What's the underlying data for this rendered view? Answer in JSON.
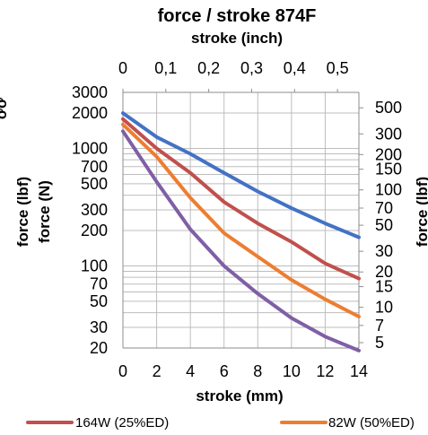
{
  "chart_data": {
    "type": "line",
    "title": "force / stroke 874F",
    "top_axis_label": "stroke (inch)",
    "xlabel": "stroke (mm)",
    "ylabel_left_outer": "force (lbf)",
    "ylabel_left_inner": "force (N)",
    "ylabel_right": "force (lbf)",
    "left_label_partial": "ơơ",
    "x_ticks": [
      "0",
      "2",
      "4",
      "6",
      "8",
      "10",
      "12",
      "14"
    ],
    "x_tick_values": [
      0,
      2,
      4,
      6,
      8,
      10,
      12,
      14
    ],
    "top_ticks": [
      "0",
      "0,1",
      "0,2",
      "0,3",
      "0,4",
      "0,5"
    ],
    "top_tick_values": [
      0,
      0.1,
      0.2,
      0.3,
      0.4,
      0.5
    ],
    "left_ticks": [
      "3000",
      "2000",
      "1000",
      "700",
      "500",
      "300",
      "200",
      "100",
      "70",
      "50",
      "30",
      "20"
    ],
    "left_tick_values": [
      3000,
      2000,
      1000,
      700,
      500,
      300,
      200,
      100,
      70,
      50,
      30,
      20
    ],
    "right_ticks": [
      "500",
      "300",
      "200",
      "150",
      "100",
      "70",
      "50",
      "30",
      "20",
      "15",
      "10",
      "7",
      "5"
    ],
    "right_tick_values": [
      500,
      300,
      200,
      150,
      100,
      70,
      50,
      30,
      20,
      15,
      10,
      7,
      5
    ],
    "xlim": [
      0,
      14
    ],
    "ylim": [
      20,
      3000
    ],
    "yscale": "log",
    "grid": true,
    "series": [
      {
        "name": "",
        "color": "#4472c4",
        "x": [
          0,
          2,
          4,
          6,
          8,
          10,
          12,
          14
        ],
        "y": [
          2000,
          1250,
          900,
          620,
          430,
          310,
          230,
          175
        ]
      },
      {
        "name": "164W (25%ED)",
        "color": "#c0504d",
        "x": [
          0,
          2,
          4,
          6,
          8,
          10,
          12,
          14
        ],
        "y": [
          1780,
          1000,
          620,
          350,
          230,
          160,
          105,
          78
        ]
      },
      {
        "name": "82W (50%ED)",
        "color": "#ed7d31",
        "x": [
          0,
          2,
          4,
          6,
          8,
          10,
          12,
          14
        ],
        "y": [
          1600,
          850,
          380,
          190,
          120,
          76,
          52,
          37
        ]
      },
      {
        "name": "",
        "color": "#7f5fa5",
        "x": [
          0,
          2,
          4,
          6,
          8,
          10,
          12,
          14
        ],
        "y": [
          1400,
          520,
          205,
          100,
          58,
          36,
          25,
          19
        ]
      }
    ],
    "legend": {
      "position": "bottom",
      "entries": [
        "164W (25%ED)",
        "82W (50%ED)"
      ]
    }
  }
}
